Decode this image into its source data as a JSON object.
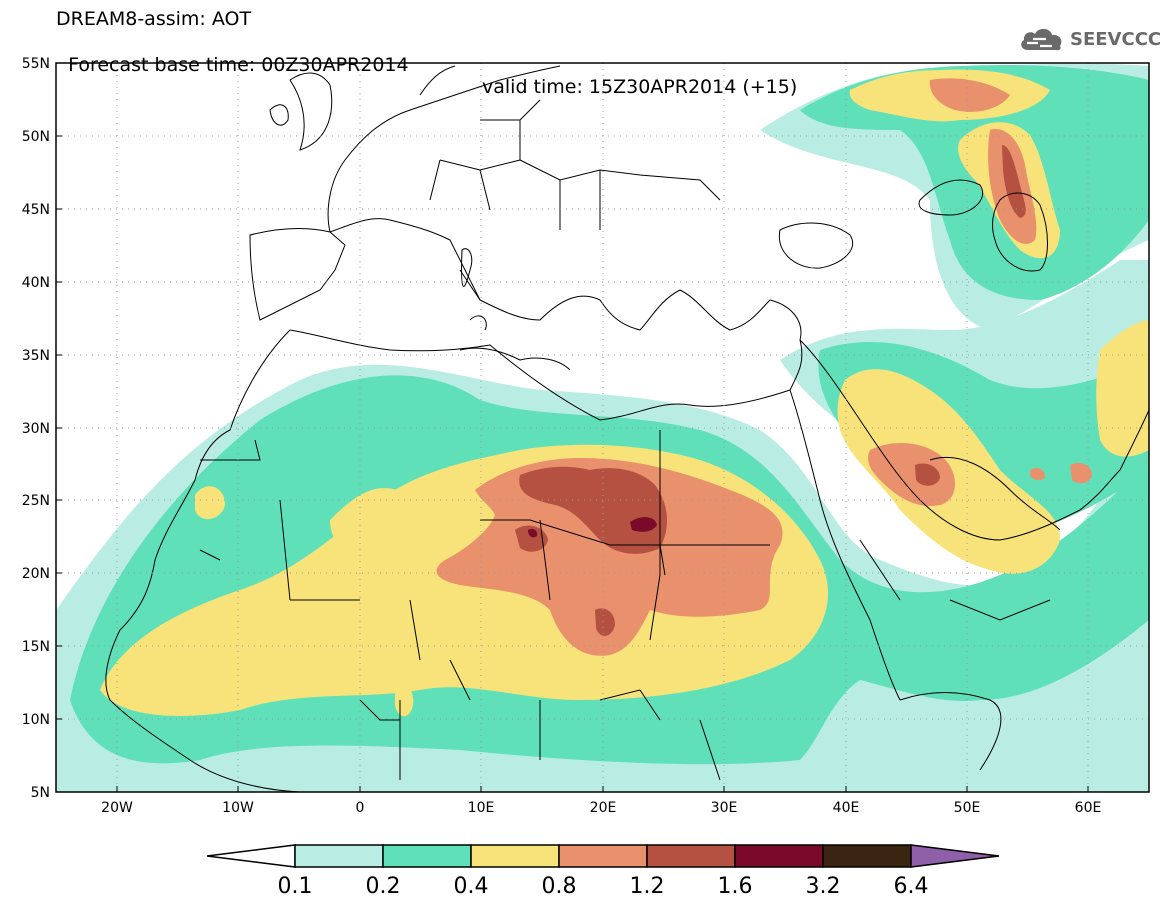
{
  "header": {
    "title_line1": "DREAM8-assim: AOT",
    "forecast_base": "Forecast base time: 00Z30APR2014",
    "valid_time": "valid time: 15Z30APR2014 (+15)"
  },
  "logo": {
    "text": "SEEVCCC",
    "icon": "cloud-icon",
    "color": "#6a6a6a"
  },
  "map": {
    "lon_range": [
      -25,
      65
    ],
    "lat_range": [
      5,
      55
    ],
    "lat_labels": [
      "55N",
      "50N",
      "45N",
      "40N",
      "35N",
      "30N",
      "25N",
      "20N",
      "15N",
      "10N",
      "5N"
    ],
    "lon_labels": [
      "20W",
      "10W",
      "0",
      "10E",
      "20E",
      "30E",
      "40E",
      "50E",
      "60E"
    ],
    "grid": "dotted"
  },
  "colorbar": {
    "labels": [
      "0.1",
      "0.2",
      "0.4",
      "0.8",
      "1.2",
      "1.6",
      "3.2",
      "6.4"
    ],
    "colors": [
      "#ffffff",
      "#b9ede3",
      "#5fe0b9",
      "#f7e37a",
      "#e9906c",
      "#b55140",
      "#7b0a2a",
      "#3a2412",
      "#8d60a8"
    ]
  }
}
